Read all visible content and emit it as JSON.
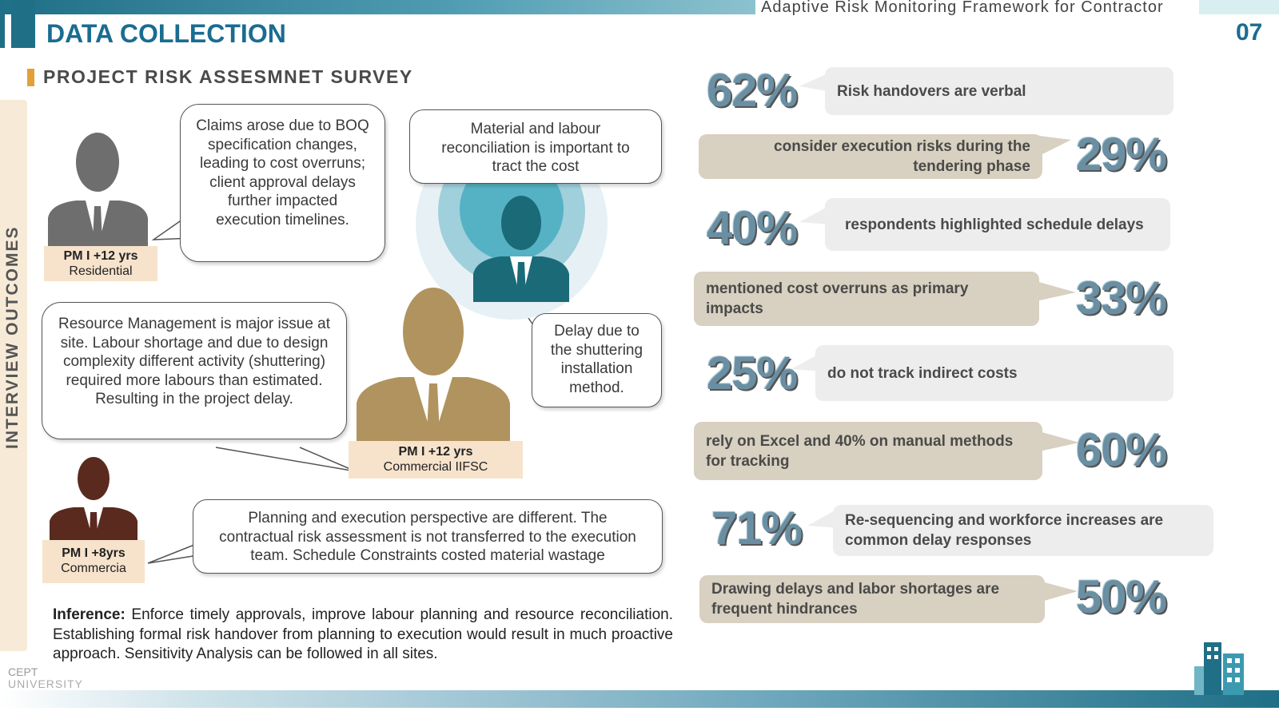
{
  "header": {
    "framework": "Adaptive Risk Monitoring Framework for Contractor",
    "title": "DATA COLLECTION",
    "page_number": "07"
  },
  "subtitle": "PROJECT RISK ASSESMNET SURVEY",
  "side_label": "INTERVIEW OUTCOMES",
  "persons": {
    "p1": {
      "role": "PM I +12 yrs",
      "sector": "Residential",
      "color": "#6e6e6e"
    },
    "p2": {
      "color": "#1b6a78"
    },
    "p3": {
      "role": "PM I +12 yrs",
      "sector": "Commercial IIFSC",
      "color": "#b0935e"
    },
    "p4": {
      "role": "PM I +8yrs",
      "sector": "Commercia",
      "color": "#5a2a1e"
    }
  },
  "quotes": {
    "q1": "Claims arose due to BOQ specification changes, leading to cost overruns; client approval delays further impacted execution timelines.",
    "q2": "Material and labour reconciliation is important to tract the cost",
    "q3": "Delay due to the shuttering installation method.",
    "q4": "Resource Management is major issue at site. Labour shortage and due to design complexity different activity (shuttering) required more labours than estimated. Resulting in the project delay.",
    "q5": "Planning and execution perspective are different. The contractual risk assessment  is not transferred to the execution team. Schedule Constraints costed material wastage"
  },
  "inference": {
    "label": "Inference:",
    "text": " Enforce timely approvals, improve labour planning and resource reconciliation. Establishing formal risk handover from planning to execution would result in much proactive approach. Sensitivity Analysis can be followed in all sites."
  },
  "stats": [
    {
      "value": "62%",
      "text": "Risk handovers are verbal"
    },
    {
      "value": "29%",
      "text": "consider execution risks during the tendering phase"
    },
    {
      "value": "40%",
      "text": "respondents highlighted schedule delays"
    },
    {
      "value": "33%",
      "text": "mentioned cost overruns as primary impacts"
    },
    {
      "value": "25%",
      "text": "do not track indirect costs"
    },
    {
      "value": "60%",
      "text": "rely on Excel and 40% on manual methods for tracking"
    },
    {
      "value": "71%",
      "text": "Re-sequencing and workforce increases  are common delay responses"
    },
    {
      "value": "50%",
      "text": "Drawing delays and labor shortages are frequent hindrances"
    }
  ],
  "footer": {
    "logo_line1": "CEPT",
    "logo_line2": "UNIVERSITY"
  }
}
